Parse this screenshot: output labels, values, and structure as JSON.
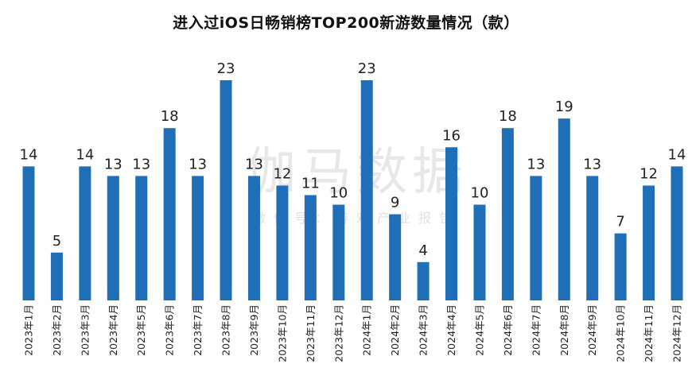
{
  "title": "进入过iOS日畅销榜TOP200新游数量情况（款）",
  "watermark": {
    "main": "伽马数据",
    "sub": "微信号：游戏产业报告"
  },
  "colors": {
    "bar": "#1F6FB8",
    "text": "#222222"
  },
  "chart_data": {
    "type": "bar",
    "title": "进入过iOS日畅销榜TOP200新游数量情况（款）",
    "xlabel": "",
    "ylabel": "",
    "grid": false,
    "legend": "none",
    "ylim": [
      0,
      23
    ],
    "categories": [
      "2023年1月",
      "2023年2月",
      "2023年3月",
      "2023年4月",
      "2023年5月",
      "2023年6月",
      "2023年7月",
      "2023年8月",
      "2023年9月",
      "2023年10月",
      "2023年11月",
      "2023年12月",
      "2024年1月",
      "2024年2月",
      "2024年3月",
      "2024年4月",
      "2024年5月",
      "2024年6月",
      "2024年7月",
      "2024年8月",
      "2024年9月",
      "2024年10月",
      "2024年11月",
      "2024年12月"
    ],
    "values": [
      14,
      5,
      14,
      13,
      13,
      18,
      13,
      23,
      13,
      12,
      11,
      10,
      23,
      9,
      4,
      16,
      10,
      18,
      13,
      19,
      13,
      7,
      12,
      14
    ]
  }
}
